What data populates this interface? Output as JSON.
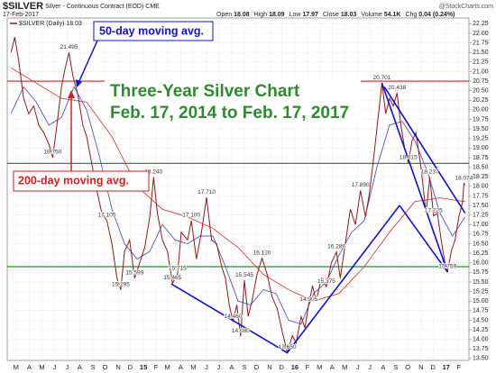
{
  "chart_data": {
    "type": "line",
    "header": {
      "symbol": "$SILVER",
      "description": "Silver - Continuous Contract (EOD) CME",
      "date": "17-Feb-2017",
      "source": "@StockCharts.com",
      "quote": [
        {
          "label": "Open",
          "text": "18.08"
        },
        {
          "label": "High",
          "text": "18.09"
        },
        {
          "label": "Low",
          "text": "17.97"
        },
        {
          "label": "Close",
          "text": "18.03"
        },
        {
          "label": "Volume",
          "text": "54.1K"
        },
        {
          "label": "Chg",
          "text": "0.04 (0.24%)"
        }
      ]
    },
    "title": "Three-Year Silver Chart",
    "subtitle": "Feb. 17, 2014 to Feb. 17, 2017",
    "xlim": [
      -0.3,
      36.3
    ],
    "ylim": [
      13.45,
      22.4
    ],
    "grid": true,
    "xticks": [
      {
        "value": 0.4,
        "label": "M"
      },
      {
        "value": 1.45,
        "label": "A"
      },
      {
        "value": 2.45,
        "label": "M"
      },
      {
        "value": 3.45,
        "label": "J"
      },
      {
        "value": 4.45,
        "label": "J"
      },
      {
        "value": 5.45,
        "label": "A"
      },
      {
        "value": 6.5,
        "label": "S"
      },
      {
        "value": 7.45,
        "label": "O"
      },
      {
        "value": 8.5,
        "label": "N"
      },
      {
        "value": 9.45,
        "label": "D"
      },
      {
        "value": 10.5,
        "label": "15"
      },
      {
        "value": 11.5,
        "label": "F"
      },
      {
        "value": 12.4,
        "label": "M"
      },
      {
        "value": 13.45,
        "label": "A"
      },
      {
        "value": 14.45,
        "label": "M"
      },
      {
        "value": 15.5,
        "label": "J"
      },
      {
        "value": 16.45,
        "label": "J"
      },
      {
        "value": 17.5,
        "label": "A"
      },
      {
        "value": 18.5,
        "label": "S"
      },
      {
        "value": 19.45,
        "label": "O"
      },
      {
        "value": 20.5,
        "label": "N"
      },
      {
        "value": 21.45,
        "label": "D"
      },
      {
        "value": 22.5,
        "label": "16"
      },
      {
        "value": 23.5,
        "label": "F"
      },
      {
        "value": 24.45,
        "label": "M"
      },
      {
        "value": 25.45,
        "label": "A"
      },
      {
        "value": 26.45,
        "label": "M"
      },
      {
        "value": 27.5,
        "label": "J"
      },
      {
        "value": 28.45,
        "label": "J"
      },
      {
        "value": 29.5,
        "label": "A"
      },
      {
        "value": 30.5,
        "label": "S"
      },
      {
        "value": 31.45,
        "label": "O"
      },
      {
        "value": 32.5,
        "label": "N"
      },
      {
        "value": 33.45,
        "label": "D"
      },
      {
        "value": 34.5,
        "label": "17"
      },
      {
        "value": 35.5,
        "label": "F"
      }
    ],
    "yticks": [
      22.25,
      {
        "value": 22,
        "label": "22.00"
      },
      21.75,
      {
        "value": 21.5,
        "label": "21.50"
      },
      21.25,
      {
        "value": 21,
        "label": "21.00"
      },
      20.75,
      {
        "value": 20.5,
        "label": "20.50"
      },
      20.25,
      {
        "value": 20,
        "label": "20.00"
      },
      19.75,
      {
        "value": 19.5,
        "label": "19.50"
      },
      19.25,
      {
        "value": 19,
        "label": "19.00"
      },
      18.75,
      {
        "value": 18.5,
        "label": "18.50"
      },
      18.25,
      {
        "value": 18,
        "label": "18.00"
      },
      17.75,
      {
        "value": 17.5,
        "label": "17.50"
      },
      17.25,
      {
        "value": 17,
        "label": "17.00"
      },
      16.75,
      {
        "value": 16.5,
        "label": "16.50"
      },
      16.25,
      {
        "value": 16,
        "label": "16.00"
      },
      15.75,
      {
        "value": 15.5,
        "label": "15.50"
      },
      15.25,
      {
        "value": 15,
        "label": "15.00"
      },
      14.75,
      {
        "value": 14.5,
        "label": "14.50"
      },
      14.25,
      {
        "value": 14,
        "label": "14.00"
      },
      13.75,
      {
        "value": 13.5,
        "label": "13.50"
      }
    ],
    "series": [
      {
        "name": "$SILVER (Daily) 18.03",
        "color": "#8b1a1a",
        "x": [
          0,
          0.3,
          0.6,
          1.0,
          1.4,
          1.8,
          2.2,
          2.6,
          3.0,
          3.3,
          3.6,
          4.0,
          4.3,
          4.6,
          4.9,
          5.3,
          5.7,
          6.0,
          6.4,
          6.8,
          7.2,
          7.6,
          8.0,
          8.4,
          8.7,
          9.0,
          9.4,
          9.8,
          10.2,
          10.6,
          11.0,
          11.3,
          11.6,
          12.0,
          12.4,
          12.8,
          13.2,
          13.5,
          14.0,
          14.3,
          14.7,
          15.1,
          15.5,
          15.9,
          16.3,
          16.7,
          17.0,
          17.3,
          17.6,
          17.9,
          18.2,
          18.5,
          18.8,
          19.1,
          19.5,
          19.9,
          20.3,
          20.7,
          21.1,
          21.5,
          21.9,
          22.3,
          22.6,
          23.0,
          23.3,
          23.6,
          23.9,
          24.2,
          24.6,
          25.0,
          25.4,
          25.8,
          26.1,
          26.5,
          26.9,
          27.3,
          27.7,
          28.1,
          28.4,
          28.8,
          29.1,
          29.4,
          29.7,
          30.0,
          30.3,
          30.6,
          30.9,
          31.2,
          31.5,
          31.8,
          32.1,
          32.5,
          32.9,
          33.2,
          33.5,
          33.8,
          34.1,
          34.4,
          34.6,
          34.9,
          35.2,
          35.5,
          35.8,
          35.9,
          36.0
        ],
        "values": [
          21.5,
          21.9,
          21.3,
          20.3,
          19.9,
          20.1,
          19.6,
          19.4,
          19.1,
          18.75,
          19.5,
          20.6,
          21.1,
          21.495,
          20.9,
          20.4,
          19.6,
          19.3,
          18.6,
          17.9,
          17.3,
          17.105,
          16.5,
          15.6,
          15.295,
          16.3,
          16.6,
          15.599,
          16.0,
          16.4,
          17.2,
          18.24,
          17.3,
          16.6,
          16.3,
          15.465,
          15.715,
          16.8,
          16.6,
          17.1,
          16.1,
          16.8,
          17.71,
          16.6,
          16.5,
          15.9,
          15.6,
          14.9,
          14.46,
          14.9,
          14.08,
          15.545,
          14.6,
          15.0,
          15.7,
          16.12,
          15.7,
          15.1,
          14.8,
          14.2,
          13.65,
          14.1,
          13.9,
          14.6,
          14.3,
          14.905,
          15.4,
          15.0,
          15.6,
          15.375,
          16.0,
          16.286,
          15.6,
          16.5,
          17.4,
          17.0,
          17.89,
          17.2,
          17.8,
          18.9,
          19.8,
          20.701,
          19.9,
          20.3,
          20.1,
          20.438,
          19.6,
          19.0,
          18.615,
          19.2,
          19.4,
          18.5,
          17.3,
          18.237,
          17.225,
          17.3,
          16.6,
          16.0,
          15.759,
          16.3,
          16.6,
          17.2,
          17.6,
          18.074,
          18.03
        ]
      },
      {
        "name": "50-day moving avg.",
        "color": "#5555bb",
        "x": [
          0,
          1,
          2,
          3,
          4,
          5,
          6,
          7,
          8,
          9,
          10,
          11,
          12,
          13,
          14,
          15,
          16,
          17,
          18,
          19,
          20,
          21,
          22,
          23,
          24,
          25,
          26,
          27,
          28,
          29,
          30,
          31,
          32,
          33,
          34,
          35,
          36
        ],
        "values": [
          19.9,
          20.6,
          20.2,
          19.6,
          19.8,
          20.6,
          20.0,
          18.8,
          17.4,
          16.5,
          16.1,
          16.3,
          17.0,
          16.6,
          16.5,
          16.7,
          16.7,
          15.9,
          15.0,
          14.9,
          15.3,
          15.2,
          14.5,
          14.4,
          15.2,
          15.5,
          16.2,
          16.8,
          17.1,
          18.5,
          19.6,
          19.7,
          19.2,
          18.4,
          17.3,
          16.7,
          17.2
        ]
      },
      {
        "name": "200-day moving avg.",
        "color": "#d04040",
        "x": [
          0,
          2,
          4,
          6,
          8,
          10,
          12,
          14,
          16,
          18,
          20,
          22,
          24,
          26,
          28,
          30,
          32,
          34,
          36
        ],
        "values": [
          21.1,
          20.7,
          20.3,
          20.2,
          19.3,
          18.0,
          17.4,
          17.2,
          16.9,
          16.4,
          15.7,
          15.3,
          15.0,
          15.2,
          15.9,
          16.8,
          17.6,
          17.7,
          17.6
        ]
      }
    ],
    "hlines": [
      {
        "value": 20.75,
        "color": "#cc2222"
      },
      {
        "value": 18.6,
        "color": "#2e8b2e"
      },
      {
        "value": 15.9,
        "color": "#2e8b2e"
      }
    ],
    "trendlines": [
      {
        "x": [
          12.7,
          21.9
        ],
        "values": [
          15.45,
          13.65
        ]
      },
      {
        "x": [
          21.9,
          30.8
        ],
        "values": [
          13.65,
          17.5
        ]
      },
      {
        "x": [
          30.8,
          34.6
        ],
        "values": [
          17.5,
          15.759
        ]
      },
      {
        "x": [
          29.4,
          34.6
        ],
        "values": [
          20.701,
          15.759
        ]
      },
      {
        "x": [
          29.6,
          36.0
        ],
        "values": [
          20.6,
          17.3
        ]
      }
    ],
    "trendline_color": "#1010cc",
    "annotations": [
      {
        "x": 4.6,
        "value": 21.495,
        "label": "21.495"
      },
      {
        "x": 3.3,
        "value": 18.75,
        "label": "18.750"
      },
      {
        "x": 7.6,
        "value": 17.105,
        "label": "17.105"
      },
      {
        "x": 8.7,
        "value": 15.295,
        "label": "15.295"
      },
      {
        "x": 9.8,
        "value": 15.599,
        "label": "15.599"
      },
      {
        "x": 11.3,
        "value": 18.24,
        "label": "18.240"
      },
      {
        "x": 14.3,
        "value": 17.1,
        "label": "17.100"
      },
      {
        "x": 12.8,
        "value": 15.465,
        "label": "15.465"
      },
      {
        "x": 13.2,
        "value": 15.715,
        "label": "15.715"
      },
      {
        "x": 15.5,
        "value": 17.71,
        "label": "17.710"
      },
      {
        "x": 17.6,
        "value": 14.46,
        "label": "14.460"
      },
      {
        "x": 18.2,
        "value": 14.08,
        "label": "14.080"
      },
      {
        "x": 18.5,
        "value": 15.545,
        "label": "15.545"
      },
      {
        "x": 19.9,
        "value": 16.12,
        "label": "16.120"
      },
      {
        "x": 21.9,
        "value": 13.65,
        "label": "13.650"
      },
      {
        "x": 23.6,
        "value": 14.905,
        "label": "14.905"
      },
      {
        "x": 25.0,
        "value": 15.375,
        "label": "15.375"
      },
      {
        "x": 25.8,
        "value": 16.286,
        "label": "16.286"
      },
      {
        "x": 27.7,
        "value": 17.89,
        "label": "17.890"
      },
      {
        "x": 29.4,
        "value": 20.701,
        "label": "20.701"
      },
      {
        "x": 30.6,
        "value": 20.438,
        "label": "20.438"
      },
      {
        "x": 31.5,
        "value": 18.615,
        "label": "18.615"
      },
      {
        "x": 33.2,
        "value": 18.237,
        "label": "18.237"
      },
      {
        "x": 33.5,
        "value": 17.225,
        "label": "17.225"
      },
      {
        "x": 34.6,
        "value": 15.759,
        "label": "15.759"
      },
      {
        "x": 35.9,
        "value": 18.074,
        "label": "18.074"
      }
    ]
  }
}
